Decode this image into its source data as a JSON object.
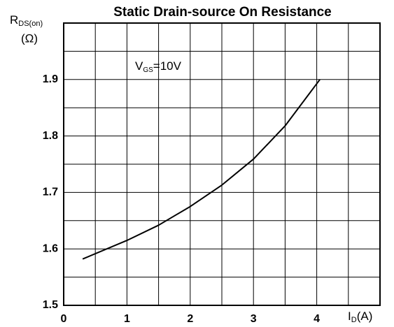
{
  "chart_data": {
    "type": "line",
    "title": "Static Drain-source On Resistance",
    "y_label": {
      "main": "R",
      "sub": "DS(on)",
      "unit": "(Ω)"
    },
    "x_label": {
      "main": "I",
      "sub": "D",
      "unit": "(A)"
    },
    "annotation": {
      "main": "V",
      "sub": "GS",
      "rest": "=10V"
    },
    "x": [
      0.3,
      1,
      1.5,
      2,
      2.5,
      3,
      3.5,
      4.05
    ],
    "series": [
      {
        "color": "#000000",
        "values": [
          1.582,
          1.615,
          1.642,
          1.675,
          1.713,
          1.759,
          1.818,
          1.9
        ]
      }
    ],
    "xlim": [
      0,
      5
    ],
    "ylim": [
      1.5,
      2.0
    ],
    "xticks": [
      0,
      1,
      2,
      3,
      4
    ],
    "yticks": [
      1.5,
      1.6,
      1.7,
      1.8,
      1.9
    ],
    "x_minor_grid": [
      0.5,
      1.5,
      2.5,
      3.5,
      4.5
    ],
    "y_minor_grid": [
      1.55,
      1.65,
      1.75,
      1.85,
      1.95
    ],
    "grid": true
  }
}
